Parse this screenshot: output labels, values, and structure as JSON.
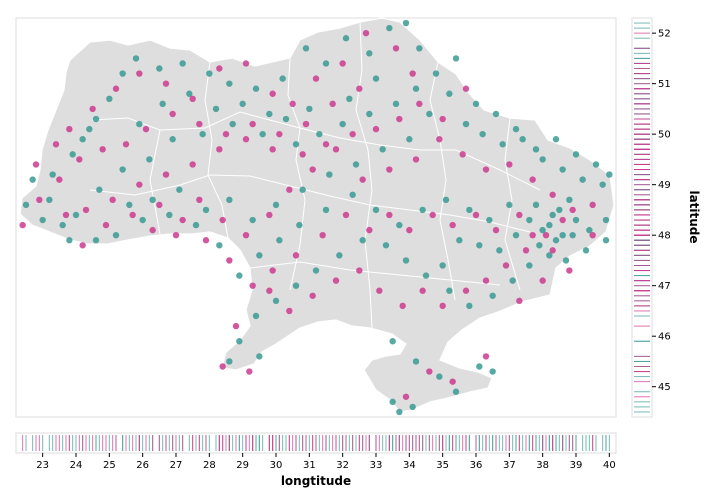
{
  "chart_data": {
    "type": "scatter",
    "title": "",
    "xlabel": "longtitude",
    "ylabel": "latitude",
    "xlim": [
      22.2,
      40.2
    ],
    "ylim": [
      44.4,
      52.3
    ],
    "x_ticks": [
      23,
      24,
      25,
      26,
      27,
      28,
      29,
      30,
      31,
      32,
      33,
      34,
      35,
      36,
      37,
      38,
      39,
      40
    ],
    "y_ticks": [
      45,
      46,
      47,
      48,
      49,
      50,
      51,
      52
    ],
    "background_map": "Ukraine oblast boundaries",
    "grid": false,
    "legend": "none",
    "colors": {
      "series_a": "#3a9a94",
      "series_b": "#cc3b8f",
      "map_fill": "#dedede",
      "map_border": "#ffffff",
      "frame": "#dddddd"
    },
    "series": [
      {
        "color_key": "series_a",
        "points": [
          [
            22.5,
            48.6
          ],
          [
            23.0,
            48.3
          ],
          [
            23.6,
            48.2
          ],
          [
            24.0,
            48.4
          ],
          [
            23.3,
            49.2
          ],
          [
            24.2,
            49.9
          ],
          [
            24.6,
            50.3
          ],
          [
            25.0,
            50.7
          ],
          [
            25.4,
            51.2
          ],
          [
            25.8,
            51.5
          ],
          [
            26.5,
            51.3
          ],
          [
            27.2,
            51.4
          ],
          [
            28.0,
            51.2
          ],
          [
            28.6,
            51.0
          ],
          [
            29.4,
            50.9
          ],
          [
            30.2,
            51.1
          ],
          [
            30.9,
            51.7
          ],
          [
            31.5,
            51.4
          ],
          [
            32.1,
            51.9
          ],
          [
            32.8,
            51.6
          ],
          [
            33.4,
            52.1
          ],
          [
            33.9,
            52.2
          ],
          [
            34.3,
            51.7
          ],
          [
            33.0,
            51.1
          ],
          [
            32.2,
            50.7
          ],
          [
            31.0,
            50.5
          ],
          [
            30.3,
            50.3
          ],
          [
            29.6,
            50.0
          ],
          [
            28.7,
            50.2
          ],
          [
            27.8,
            50.0
          ],
          [
            26.9,
            49.9
          ],
          [
            26.2,
            49.5
          ],
          [
            25.4,
            49.3
          ],
          [
            24.7,
            48.9
          ],
          [
            25.6,
            48.6
          ],
          [
            26.3,
            48.7
          ],
          [
            27.1,
            48.9
          ],
          [
            27.9,
            48.5
          ],
          [
            28.6,
            48.7
          ],
          [
            29.3,
            48.3
          ],
          [
            30.0,
            48.6
          ],
          [
            30.8,
            48.9
          ],
          [
            31.6,
            49.2
          ],
          [
            32.4,
            49.4
          ],
          [
            33.2,
            49.7
          ],
          [
            34.0,
            49.9
          ],
          [
            34.6,
            50.4
          ],
          [
            35.2,
            50.8
          ],
          [
            35.7,
            50.2
          ],
          [
            36.2,
            50.0
          ],
          [
            36.8,
            49.8
          ],
          [
            37.4,
            49.9
          ],
          [
            38.0,
            49.5
          ],
          [
            38.6,
            49.3
          ],
          [
            39.2,
            49.1
          ],
          [
            39.8,
            49.0
          ],
          [
            39.9,
            48.3
          ],
          [
            39.4,
            48.1
          ],
          [
            38.9,
            48.0
          ],
          [
            38.4,
            47.9
          ],
          [
            38.0,
            48.1
          ],
          [
            37.6,
            48.3
          ],
          [
            37.2,
            48.0
          ],
          [
            36.7,
            47.7
          ],
          [
            36.1,
            47.8
          ],
          [
            35.5,
            47.9
          ],
          [
            35.0,
            47.4
          ],
          [
            34.5,
            47.2
          ],
          [
            33.9,
            47.5
          ],
          [
            33.3,
            47.8
          ],
          [
            32.6,
            47.9
          ],
          [
            31.9,
            47.6
          ],
          [
            31.2,
            47.3
          ],
          [
            30.6,
            47.0
          ],
          [
            30.0,
            46.7
          ],
          [
            29.4,
            46.4
          ],
          [
            28.9,
            45.9
          ],
          [
            28.6,
            45.5
          ],
          [
            29.5,
            45.6
          ],
          [
            33.5,
            45.9
          ],
          [
            34.2,
            45.5
          ],
          [
            34.9,
            45.2
          ],
          [
            35.4,
            44.9
          ],
          [
            34.1,
            44.6
          ],
          [
            33.7,
            44.5
          ],
          [
            33.5,
            44.7
          ],
          [
            36.1,
            45.4
          ],
          [
            36.5,
            45.3
          ],
          [
            35.8,
            46.6
          ],
          [
            35.2,
            46.9
          ],
          [
            36.5,
            46.8
          ],
          [
            37.1,
            47.1
          ],
          [
            37.6,
            47.4
          ],
          [
            38.2,
            47.6
          ],
          [
            38.7,
            47.5
          ],
          [
            39.3,
            47.7
          ],
          [
            39.9,
            47.9
          ],
          [
            38.5,
            48.5
          ],
          [
            38.8,
            48.7
          ],
          [
            38.2,
            48.2
          ],
          [
            37.9,
            47.8
          ],
          [
            38.6,
            48.0
          ],
          [
            39.0,
            48.3
          ],
          [
            38.3,
            48.4
          ],
          [
            37.8,
            48.6
          ],
          [
            37.0,
            48.6
          ],
          [
            36.4,
            48.3
          ],
          [
            35.8,
            48.5
          ],
          [
            35.1,
            48.7
          ],
          [
            34.4,
            48.5
          ],
          [
            33.7,
            48.2
          ],
          [
            33.0,
            48.5
          ],
          [
            32.3,
            48.8
          ],
          [
            31.5,
            48.5
          ],
          [
            30.7,
            48.2
          ],
          [
            30.1,
            47.9
          ],
          [
            29.5,
            47.6
          ],
          [
            28.9,
            47.2
          ],
          [
            28.3,
            47.8
          ],
          [
            27.6,
            48.2
          ],
          [
            26.8,
            48.4
          ],
          [
            26.0,
            48.3
          ],
          [
            25.2,
            48.0
          ],
          [
            24.6,
            47.9
          ],
          [
            23.8,
            47.9
          ],
          [
            23.2,
            48.7
          ],
          [
            22.7,
            49.1
          ],
          [
            23.9,
            49.6
          ],
          [
            24.4,
            50.1
          ],
          [
            25.9,
            50.2
          ],
          [
            26.6,
            50.6
          ],
          [
            27.4,
            50.8
          ],
          [
            28.2,
            50.5
          ],
          [
            29.0,
            50.6
          ],
          [
            29.8,
            50.4
          ],
          [
            30.6,
            49.8
          ],
          [
            31.3,
            50.0
          ],
          [
            32.0,
            50.2
          ],
          [
            32.8,
            50.4
          ],
          [
            33.6,
            50.6
          ],
          [
            34.2,
            50.9
          ],
          [
            34.8,
            51.2
          ],
          [
            35.4,
            51.5
          ],
          [
            36.0,
            50.6
          ],
          [
            36.6,
            50.4
          ],
          [
            37.2,
            50.1
          ],
          [
            37.8,
            49.7
          ],
          [
            38.4,
            49.9
          ],
          [
            39.0,
            49.6
          ],
          [
            39.6,
            49.4
          ],
          [
            40.0,
            49.2
          ]
        ]
      },
      {
        "color_key": "series_b",
        "points": [
          [
            22.4,
            48.2
          ],
          [
            22.9,
            48.7
          ],
          [
            23.5,
            49.1
          ],
          [
            24.1,
            49.5
          ],
          [
            23.8,
            50.1
          ],
          [
            24.5,
            50.5
          ],
          [
            25.2,
            50.9
          ],
          [
            25.9,
            51.2
          ],
          [
            26.7,
            51.0
          ],
          [
            27.5,
            50.7
          ],
          [
            28.3,
            51.3
          ],
          [
            29.1,
            51.4
          ],
          [
            29.9,
            50.8
          ],
          [
            30.5,
            50.6
          ],
          [
            31.2,
            51.1
          ],
          [
            32.0,
            51.4
          ],
          [
            32.7,
            52.0
          ],
          [
            33.6,
            51.7
          ],
          [
            34.1,
            51.2
          ],
          [
            32.5,
            50.9
          ],
          [
            31.7,
            50.6
          ],
          [
            30.9,
            50.2
          ],
          [
            29.9,
            49.7
          ],
          [
            29.1,
            49.9
          ],
          [
            28.3,
            49.7
          ],
          [
            27.5,
            49.4
          ],
          [
            26.7,
            49.2
          ],
          [
            25.9,
            49.0
          ],
          [
            25.1,
            48.7
          ],
          [
            24.3,
            48.5
          ],
          [
            23.7,
            48.4
          ],
          [
            26.3,
            48.1
          ],
          [
            27.0,
            48.0
          ],
          [
            27.7,
            48.7
          ],
          [
            28.4,
            48.3
          ],
          [
            29.1,
            48.0
          ],
          [
            29.8,
            48.4
          ],
          [
            30.4,
            48.9
          ],
          [
            31.1,
            49.3
          ],
          [
            31.8,
            49.7
          ],
          [
            32.6,
            49.1
          ],
          [
            33.4,
            49.3
          ],
          [
            34.2,
            49.5
          ],
          [
            34.9,
            49.9
          ],
          [
            35.6,
            49.6
          ],
          [
            36.3,
            49.3
          ],
          [
            37.0,
            49.4
          ],
          [
            37.7,
            49.1
          ],
          [
            38.3,
            48.8
          ],
          [
            38.9,
            48.5
          ],
          [
            39.5,
            48.6
          ],
          [
            38.1,
            48.0
          ],
          [
            37.5,
            47.7
          ],
          [
            36.9,
            47.4
          ],
          [
            36.3,
            47.1
          ],
          [
            35.7,
            46.9
          ],
          [
            35.0,
            46.6
          ],
          [
            34.4,
            46.9
          ],
          [
            33.8,
            46.6
          ],
          [
            33.1,
            46.9
          ],
          [
            32.5,
            47.3
          ],
          [
            31.8,
            47.1
          ],
          [
            31.1,
            46.8
          ],
          [
            30.4,
            46.5
          ],
          [
            29.8,
            46.9
          ],
          [
            28.8,
            46.2
          ],
          [
            28.4,
            45.4
          ],
          [
            29.2,
            45.3
          ],
          [
            33.9,
            44.8
          ],
          [
            34.6,
            45.3
          ],
          [
            35.3,
            45.1
          ],
          [
            36.3,
            45.6
          ],
          [
            37.3,
            46.7
          ],
          [
            38.0,
            47.1
          ],
          [
            38.8,
            47.3
          ],
          [
            39.5,
            48.0
          ],
          [
            38.6,
            48.3
          ],
          [
            38.3,
            47.7
          ],
          [
            37.7,
            48.0
          ],
          [
            37.3,
            48.4
          ],
          [
            36.6,
            48.1
          ],
          [
            36.0,
            48.4
          ],
          [
            35.3,
            48.2
          ],
          [
            34.7,
            48.4
          ],
          [
            34.0,
            48.1
          ],
          [
            33.4,
            48.4
          ],
          [
            32.8,
            48.1
          ],
          [
            32.1,
            48.4
          ],
          [
            31.4,
            48.0
          ],
          [
            30.6,
            47.6
          ],
          [
            29.9,
            47.3
          ],
          [
            29.3,
            47.0
          ],
          [
            28.6,
            47.5
          ],
          [
            27.9,
            47.9
          ],
          [
            27.2,
            48.3
          ],
          [
            26.5,
            48.6
          ],
          [
            25.7,
            48.4
          ],
          [
            24.9,
            48.2
          ],
          [
            24.2,
            47.8
          ],
          [
            22.8,
            49.4
          ],
          [
            23.4,
            49.8
          ],
          [
            24.8,
            49.7
          ],
          [
            25.5,
            49.8
          ],
          [
            26.1,
            50.1
          ],
          [
            26.9,
            50.4
          ],
          [
            27.7,
            50.2
          ],
          [
            28.5,
            50.0
          ],
          [
            29.3,
            50.2
          ],
          [
            30.1,
            50.0
          ],
          [
            30.8,
            49.6
          ],
          [
            31.5,
            49.8
          ],
          [
            32.3,
            50.0
          ],
          [
            33.0,
            50.1
          ],
          [
            33.7,
            50.3
          ],
          [
            34.3,
            50.6
          ],
          [
            35.0,
            50.3
          ],
          [
            35.7,
            50.9
          ]
        ]
      }
    ]
  }
}
